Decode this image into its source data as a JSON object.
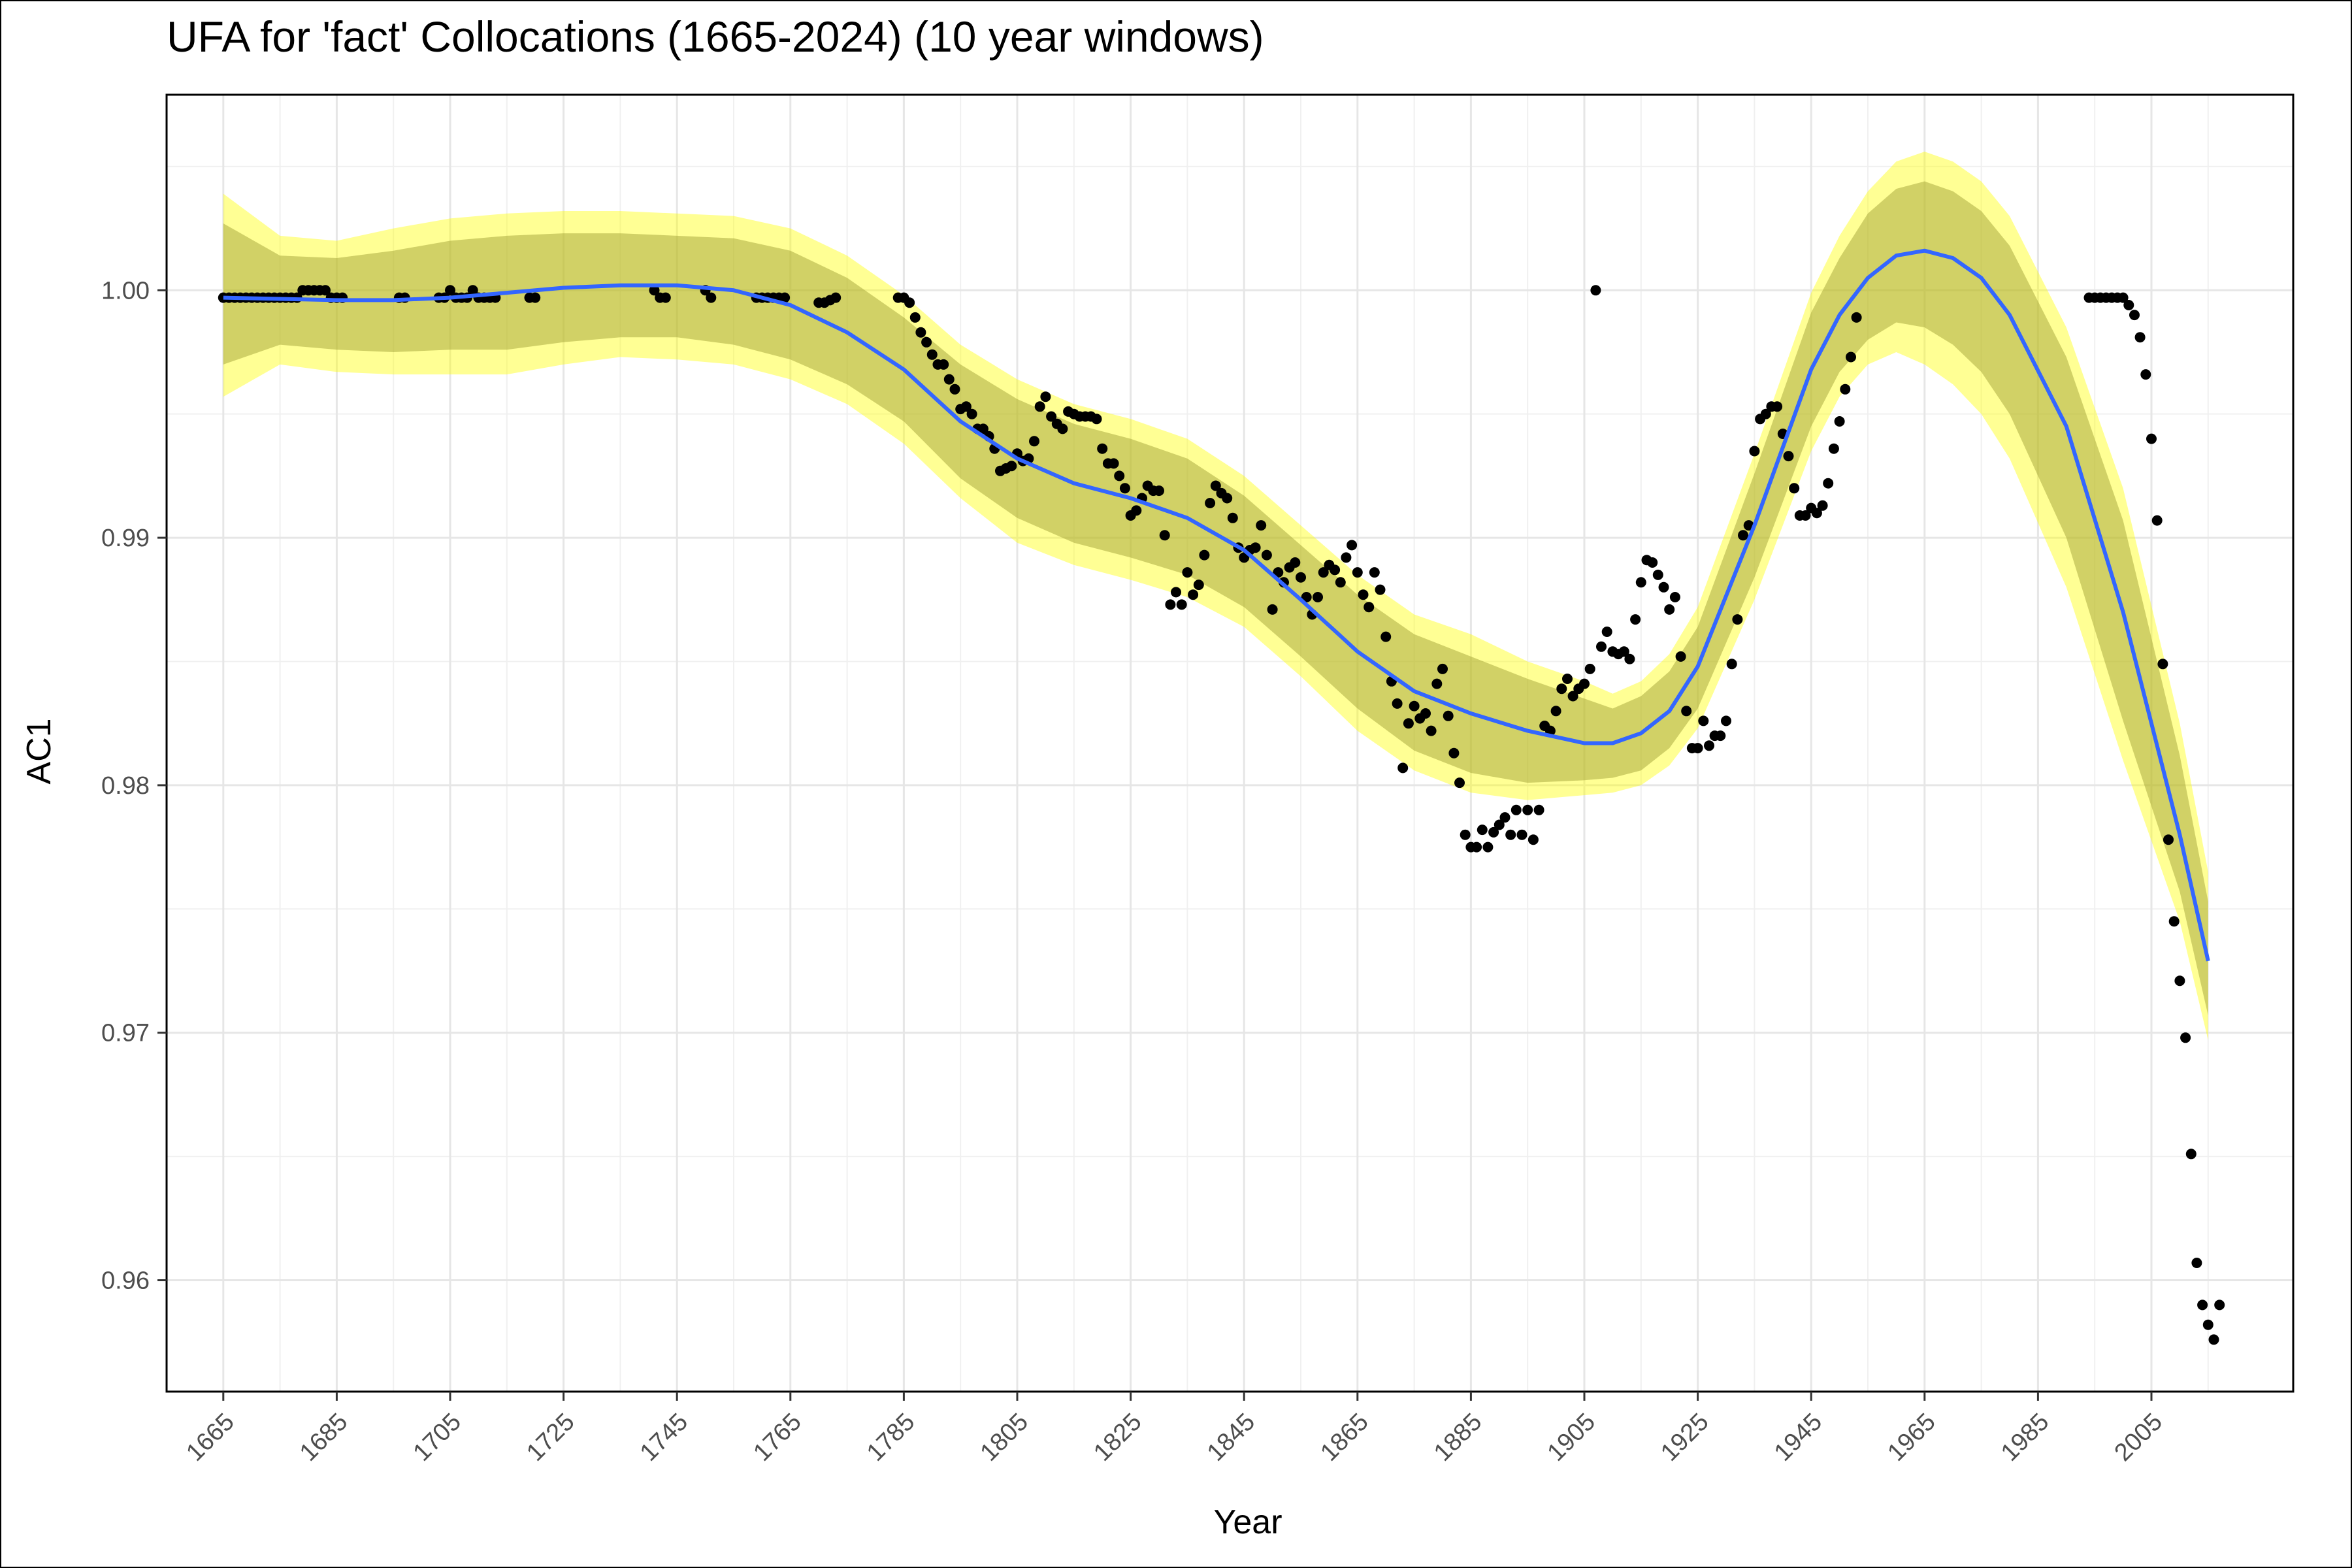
{
  "chart_data": {
    "type": "scatter",
    "title": "UFA for 'fact' Collocations (1665-2024) (10 year windows)",
    "xlabel": "Year",
    "ylabel": "AC1",
    "xlim": [
      1655,
      2030
    ],
    "ylim": [
      0.9555,
      1.0079
    ],
    "x_ticks": [
      "1665",
      "1685",
      "1705",
      "1725",
      "1745",
      "1765",
      "1785",
      "1805",
      "1825",
      "1845",
      "1865",
      "1885",
      "1905",
      "1925",
      "1945",
      "1965",
      "1985",
      "2005"
    ],
    "y_ticks": [
      "0.96",
      "0.97",
      "0.98",
      "0.99",
      "1.00"
    ],
    "grid": true,
    "colors": {
      "points": "#000000",
      "smooth_line": "#3366ff",
      "outer_band": "#ffff00",
      "inner_band": "#9a9a2e"
    },
    "smooth": {
      "x": [
        1665,
        1675,
        1685,
        1695,
        1705,
        1715,
        1725,
        1735,
        1745,
        1755,
        1765,
        1775,
        1785,
        1795,
        1805,
        1815,
        1825,
        1835,
        1845,
        1855,
        1865,
        1875,
        1885,
        1895,
        1905,
        1910,
        1915,
        1920,
        1925,
        1935,
        1945,
        1950,
        1955,
        1960,
        1965,
        1970,
        1975,
        1980,
        1990,
        2000,
        2010,
        2015
      ],
      "y": [
        0.9997,
        0.99965,
        0.9996,
        0.9996,
        0.9997,
        0.9999,
        1.0001,
        1.0002,
        1.0002,
        1.0,
        0.9994,
        0.9983,
        0.9968,
        0.9947,
        0.9932,
        0.9922,
        0.9916,
        0.9908,
        0.9895,
        0.9875,
        0.9854,
        0.9838,
        0.9829,
        0.9822,
        0.9817,
        0.9817,
        0.9821,
        0.983,
        0.9848,
        0.9905,
        0.9968,
        0.999,
        1.0005,
        1.0014,
        1.0016,
        1.0013,
        1.0005,
        0.999,
        0.9945,
        0.987,
        0.978,
        0.9729
      ],
      "lo95": [
        0.9957,
        0.997,
        0.9967,
        0.9966,
        0.9966,
        0.9966,
        0.997,
        0.9973,
        0.9972,
        0.997,
        0.9964,
        0.9954,
        0.9938,
        0.9916,
        0.9898,
        0.9889,
        0.9883,
        0.9876,
        0.9864,
        0.9844,
        0.9822,
        0.9806,
        0.9797,
        0.9794,
        0.9796,
        0.9797,
        0.98,
        0.9808,
        0.9823,
        0.9875,
        0.9935,
        0.9957,
        0.997,
        0.9975,
        0.997,
        0.9962,
        0.995,
        0.9932,
        0.988,
        0.981,
        0.9745,
        0.9697
      ],
      "hi95": [
        1.0039,
        1.0022,
        1.002,
        1.0025,
        1.0029,
        1.0031,
        1.0032,
        1.0032,
        1.0031,
        1.003,
        1.0025,
        1.0014,
        0.9998,
        0.9978,
        0.9964,
        0.9954,
        0.9948,
        0.994,
        0.9925,
        0.9905,
        0.9885,
        0.9869,
        0.9861,
        0.985,
        0.9842,
        0.9837,
        0.9842,
        0.9853,
        0.9872,
        0.9934,
        0.9999,
        1.0022,
        1.004,
        1.0052,
        1.0056,
        1.0052,
        1.0044,
        1.003,
        0.9985,
        0.992,
        0.9825,
        0.9765
      ],
      "lo_inner": [
        0.997,
        0.9978,
        0.9976,
        0.9975,
        0.9976,
        0.9976,
        0.9979,
        0.9981,
        0.9981,
        0.9978,
        0.9972,
        0.9962,
        0.9947,
        0.9924,
        0.9908,
        0.9898,
        0.9892,
        0.9885,
        0.9872,
        0.9852,
        0.9831,
        0.9814,
        0.9805,
        0.9801,
        0.9802,
        0.9803,
        0.9806,
        0.9815,
        0.9831,
        0.9884,
        0.9945,
        0.9967,
        0.998,
        0.9987,
        0.9985,
        0.9978,
        0.9967,
        0.995,
        0.99,
        0.9826,
        0.9757,
        0.9707
      ],
      "hi_inner": [
        1.0027,
        1.0014,
        1.0013,
        1.0016,
        1.002,
        1.0022,
        1.0023,
        1.0023,
        1.0022,
        1.0021,
        1.0016,
        1.0005,
        0.9989,
        0.997,
        0.9956,
        0.9946,
        0.994,
        0.9932,
        0.9917,
        0.9897,
        0.9877,
        0.9861,
        0.9852,
        0.9843,
        0.9835,
        0.9831,
        0.9836,
        0.9846,
        0.9864,
        0.9926,
        0.9991,
        1.0013,
        1.0031,
        1.0041,
        1.0044,
        1.004,
        1.0032,
        1.0018,
        0.9973,
        0.9907,
        0.9812,
        0.9753
      ]
    },
    "points": [
      [
        1665,
        0.9997
      ],
      [
        1666,
        0.9997
      ],
      [
        1667,
        0.9997
      ],
      [
        1668,
        0.9997
      ],
      [
        1669,
        0.9997
      ],
      [
        1670,
        0.9997
      ],
      [
        1671,
        0.9997
      ],
      [
        1672,
        0.9997
      ],
      [
        1673,
        0.9997
      ],
      [
        1674,
        0.9997
      ],
      [
        1675,
        0.9997
      ],
      [
        1676,
        0.9997
      ],
      [
        1677,
        0.9997
      ],
      [
        1678,
        0.9997
      ],
      [
        1679,
        1.0
      ],
      [
        1680,
        1.0
      ],
      [
        1681,
        1.0
      ],
      [
        1682,
        1.0
      ],
      [
        1683,
        1.0
      ],
      [
        1684,
        0.9997
      ],
      [
        1685,
        0.9997
      ],
      [
        1686,
        0.9997
      ],
      [
        1696,
        0.9997
      ],
      [
        1697,
        0.9997
      ],
      [
        1703,
        0.9997
      ],
      [
        1704,
        0.9997
      ],
      [
        1705,
        1.0
      ],
      [
        1706,
        0.9997
      ],
      [
        1707,
        0.9997
      ],
      [
        1708,
        0.9997
      ],
      [
        1709,
        1.0
      ],
      [
        1710,
        0.9997
      ],
      [
        1711,
        0.9997
      ],
      [
        1712,
        0.9997
      ],
      [
        1713,
        0.9997
      ],
      [
        1719,
        0.9997
      ],
      [
        1720,
        0.9997
      ],
      [
        1741,
        1.0
      ],
      [
        1742,
        0.9997
      ],
      [
        1743,
        0.9997
      ],
      [
        1750,
        1.0
      ],
      [
        1751,
        0.9997
      ],
      [
        1759,
        0.9997
      ],
      [
        1760,
        0.9997
      ],
      [
        1761,
        0.9997
      ],
      [
        1762,
        0.9997
      ],
      [
        1763,
        0.9997
      ],
      [
        1764,
        0.9997
      ],
      [
        1770,
        0.9995
      ],
      [
        1771,
        0.9995
      ],
      [
        1772,
        0.9996
      ],
      [
        1773,
        0.9997
      ],
      [
        1784,
        0.9997
      ],
      [
        1785,
        0.9997
      ],
      [
        1786,
        0.9995
      ],
      [
        1787,
        0.9989
      ],
      [
        1788,
        0.9983
      ],
      [
        1789,
        0.9979
      ],
      [
        1790,
        0.9974
      ],
      [
        1791,
        0.997
      ],
      [
        1792,
        0.997
      ],
      [
        1793,
        0.9964
      ],
      [
        1794,
        0.996
      ],
      [
        1795,
        0.9952
      ],
      [
        1796,
        0.9953
      ],
      [
        1797,
        0.995
      ],
      [
        1798,
        0.9944
      ],
      [
        1799,
        0.9944
      ],
      [
        1800,
        0.9941
      ],
      [
        1801,
        0.9936
      ],
      [
        1802,
        0.9927
      ],
      [
        1803,
        0.9928
      ],
      [
        1804,
        0.9929
      ],
      [
        1805,
        0.9934
      ],
      [
        1806,
        0.9931
      ],
      [
        1807,
        0.9932
      ],
      [
        1808,
        0.9939
      ],
      [
        1809,
        0.9953
      ],
      [
        1810,
        0.9957
      ],
      [
        1811,
        0.9949
      ],
      [
        1812,
        0.9946
      ],
      [
        1813,
        0.9944
      ],
      [
        1814,
        0.9951
      ],
      [
        1815,
        0.995
      ],
      [
        1816,
        0.9949
      ],
      [
        1817,
        0.9949
      ],
      [
        1818,
        0.9949
      ],
      [
        1819,
        0.9948
      ],
      [
        1820,
        0.9936
      ],
      [
        1821,
        0.993
      ],
      [
        1822,
        0.993
      ],
      [
        1823,
        0.9925
      ],
      [
        1824,
        0.992
      ],
      [
        1825,
        0.9909
      ],
      [
        1826,
        0.9911
      ],
      [
        1827,
        0.9916
      ],
      [
        1828,
        0.9921
      ],
      [
        1829,
        0.9919
      ],
      [
        1830,
        0.9919
      ],
      [
        1831,
        0.9901
      ],
      [
        1832,
        0.9873
      ],
      [
        1833,
        0.9878
      ],
      [
        1834,
        0.9873
      ],
      [
        1835,
        0.9886
      ],
      [
        1836,
        0.9877
      ],
      [
        1837,
        0.9881
      ],
      [
        1838,
        0.9893
      ],
      [
        1839,
        0.9914
      ],
      [
        1840,
        0.9921
      ],
      [
        1841,
        0.9918
      ],
      [
        1842,
        0.9916
      ],
      [
        1843,
        0.9908
      ],
      [
        1844,
        0.9896
      ],
      [
        1845,
        0.9892
      ],
      [
        1846,
        0.9895
      ],
      [
        1847,
        0.9896
      ],
      [
        1848,
        0.9905
      ],
      [
        1849,
        0.9893
      ],
      [
        1850,
        0.9871
      ],
      [
        1851,
        0.9886
      ],
      [
        1852,
        0.9882
      ],
      [
        1853,
        0.9888
      ],
      [
        1854,
        0.989
      ],
      [
        1855,
        0.9884
      ],
      [
        1856,
        0.9876
      ],
      [
        1857,
        0.9869
      ],
      [
        1858,
        0.9876
      ],
      [
        1859,
        0.9886
      ],
      [
        1860,
        0.9889
      ],
      [
        1861,
        0.9887
      ],
      [
        1862,
        0.9882
      ],
      [
        1863,
        0.9892
      ],
      [
        1864,
        0.9897
      ],
      [
        1865,
        0.9886
      ],
      [
        1866,
        0.9877
      ],
      [
        1867,
        0.9872
      ],
      [
        1868,
        0.9886
      ],
      [
        1869,
        0.9879
      ],
      [
        1870,
        0.986
      ],
      [
        1871,
        0.9842
      ],
      [
        1872,
        0.9833
      ],
      [
        1873,
        0.9807
      ],
      [
        1874,
        0.9825
      ],
      [
        1875,
        0.9832
      ],
      [
        1876,
        0.9827
      ],
      [
        1877,
        0.9829
      ],
      [
        1878,
        0.9822
      ],
      [
        1879,
        0.9841
      ],
      [
        1880,
        0.9847
      ],
      [
        1881,
        0.9828
      ],
      [
        1882,
        0.9813
      ],
      [
        1883,
        0.9801
      ],
      [
        1884,
        0.978
      ],
      [
        1885,
        0.9775
      ],
      [
        1886,
        0.9775
      ],
      [
        1887,
        0.9782
      ],
      [
        1888,
        0.9775
      ],
      [
        1889,
        0.9781
      ],
      [
        1890,
        0.9784
      ],
      [
        1891,
        0.9787
      ],
      [
        1892,
        0.978
      ],
      [
        1893,
        0.979
      ],
      [
        1894,
        0.978
      ],
      [
        1895,
        0.979
      ],
      [
        1896,
        0.9778
      ],
      [
        1897,
        0.979
      ],
      [
        1898,
        0.9824
      ],
      [
        1899,
        0.9822
      ],
      [
        1900,
        0.983
      ],
      [
        1901,
        0.9839
      ],
      [
        1902,
        0.9843
      ],
      [
        1903,
        0.9836
      ],
      [
        1904,
        0.9839
      ],
      [
        1905,
        0.9841
      ],
      [
        1906,
        0.9847
      ],
      [
        1907,
        1.0
      ],
      [
        1908,
        0.9856
      ],
      [
        1909,
        0.9862
      ],
      [
        1910,
        0.9854
      ],
      [
        1911,
        0.9853
      ],
      [
        1912,
        0.9854
      ],
      [
        1913,
        0.9851
      ],
      [
        1914,
        0.9867
      ],
      [
        1915,
        0.9882
      ],
      [
        1916,
        0.9891
      ],
      [
        1917,
        0.989
      ],
      [
        1918,
        0.9885
      ],
      [
        1919,
        0.988
      ],
      [
        1920,
        0.9871
      ],
      [
        1921,
        0.9876
      ],
      [
        1922,
        0.9852
      ],
      [
        1923,
        0.983
      ],
      [
        1924,
        0.9815
      ],
      [
        1925,
        0.9815
      ],
      [
        1926,
        0.9826
      ],
      [
        1927,
        0.9816
      ],
      [
        1928,
        0.982
      ],
      [
        1929,
        0.982
      ],
      [
        1930,
        0.9826
      ],
      [
        1931,
        0.9849
      ],
      [
        1932,
        0.9867
      ],
      [
        1933,
        0.9901
      ],
      [
        1934,
        0.9905
      ],
      [
        1935,
        0.9935
      ],
      [
        1936,
        0.9948
      ],
      [
        1937,
        0.995
      ],
      [
        1938,
        0.9953
      ],
      [
        1939,
        0.9953
      ],
      [
        1940,
        0.9942
      ],
      [
        1941,
        0.9933
      ],
      [
        1942,
        0.992
      ],
      [
        1943,
        0.9909
      ],
      [
        1944,
        0.9909
      ],
      [
        1945,
        0.9912
      ],
      [
        1946,
        0.991
      ],
      [
        1947,
        0.9913
      ],
      [
        1948,
        0.9922
      ],
      [
        1949,
        0.9936
      ],
      [
        1950,
        0.9947
      ],
      [
        1951,
        0.996
      ],
      [
        1952,
        0.9973
      ],
      [
        1953,
        0.9989
      ],
      [
        1994,
        0.9997
      ],
      [
        1995,
        0.9997
      ],
      [
        1996,
        0.9997
      ],
      [
        1997,
        0.9997
      ],
      [
        1998,
        0.9997
      ],
      [
        1999,
        0.9997
      ],
      [
        2000,
        0.9997
      ],
      [
        2001,
        0.9994
      ],
      [
        2002,
        0.999
      ],
      [
        2003,
        0.9981
      ],
      [
        2004,
        0.9966
      ],
      [
        2005,
        0.994
      ],
      [
        2006,
        0.9907
      ],
      [
        2007,
        0.9849
      ],
      [
        2008,
        0.9778
      ],
      [
        2009,
        0.9745
      ],
      [
        2010,
        0.9721
      ],
      [
        2011,
        0.9698
      ],
      [
        2012,
        0.9651
      ],
      [
        2013,
        0.9607
      ],
      [
        2014,
        0.959
      ],
      [
        2015,
        0.9582
      ],
      [
        2016,
        0.9576
      ],
      [
        2017,
        0.959
      ]
    ]
  }
}
